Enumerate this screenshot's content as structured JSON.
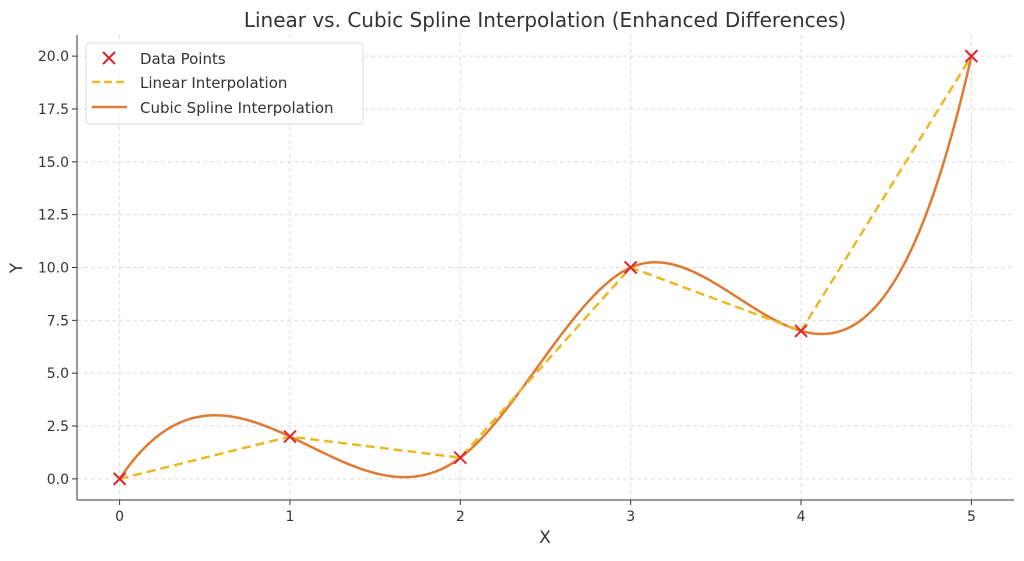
{
  "chart_data": {
    "type": "line",
    "title": "Linear vs. Cubic Spline Interpolation (Enhanced Differences)",
    "xlabel": "X",
    "ylabel": "Y",
    "xlim": [
      -0.25,
      5.25
    ],
    "ylim": [
      -1,
      21
    ],
    "xticks": [
      0,
      1,
      2,
      3,
      4,
      5
    ],
    "xtick_labels": [
      "0",
      "1",
      "2",
      "3",
      "4",
      "5"
    ],
    "yticks": [
      0,
      2.5,
      5,
      7.5,
      10,
      12.5,
      15,
      17.5,
      20
    ],
    "ytick_labels": [
      "0.0",
      "2.5",
      "5.0",
      "7.5",
      "10.0",
      "12.5",
      "15.0",
      "17.5",
      "20.0"
    ],
    "grid": true,
    "legend_position": "top-left",
    "x": [
      0,
      1,
      2,
      3,
      4,
      5
    ],
    "y": [
      0,
      2,
      1,
      10,
      7,
      20
    ],
    "series": [
      {
        "name": "Data Points",
        "kind": "scatter",
        "marker": "x",
        "color": "#e0262b"
      },
      {
        "name": "Linear Interpolation",
        "kind": "line",
        "style": "dashed",
        "color": "#ebb926"
      },
      {
        "name": "Cubic Spline Interpolation",
        "kind": "line",
        "style": "solid",
        "color": "#e07a33",
        "spline": "not-a-knot"
      }
    ]
  }
}
